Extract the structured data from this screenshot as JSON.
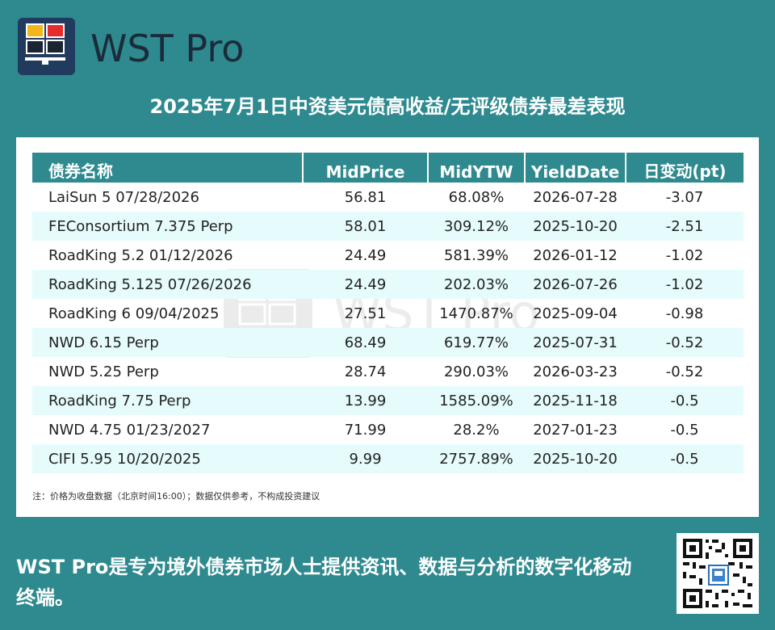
{
  "brand": {
    "name": "WST Pro",
    "logo_colors": {
      "background": "#213b5e",
      "cell_top_left": "#f2b61a",
      "cell_top_right": "#e52b2b",
      "cell_bottom": "#1b2433",
      "border": "#ffffff"
    }
  },
  "title": "2025年7月1日中资美元债高收益/无评级债券最差表现",
  "table": {
    "headers": [
      "债券名称",
      "MidPrice",
      "MidYTW",
      "YieldDate",
      "日变动(pt)"
    ],
    "rows": [
      [
        "LaiSun 5 07/28/2026",
        "56.81",
        "68.08%",
        "2026-07-28",
        "-3.07"
      ],
      [
        "FEConsortium 7.375 Perp",
        "58.01",
        "309.12%",
        "2025-10-20",
        "-2.51"
      ],
      [
        "RoadKing 5.2 01/12/2026",
        "24.49",
        "581.39%",
        "2026-01-12",
        "-1.02"
      ],
      [
        "RoadKing 5.125 07/26/2026",
        "24.49",
        "202.03%",
        "2026-07-26",
        "-1.02"
      ],
      [
        "RoadKing 6 09/04/2025",
        "27.51",
        "1470.87%",
        "2025-09-04",
        "-0.98"
      ],
      [
        "NWD 6.15 Perp",
        "68.49",
        "619.77%",
        "2025-07-31",
        "-0.52"
      ],
      [
        "NWD 5.25 Perp",
        "28.74",
        "290.03%",
        "2026-03-23",
        "-0.52"
      ],
      [
        "RoadKing 7.75 Perp",
        "13.99",
        "1585.09%",
        "2025-11-18",
        "-0.5"
      ],
      [
        "NWD 4.75 01/23/2027",
        "71.99",
        "28.2%",
        "2027-01-23",
        "-0.5"
      ],
      [
        "CIFI 5.95 10/20/2025",
        "9.99",
        "2757.89%",
        "2025-10-20",
        "-0.5"
      ]
    ]
  },
  "note": "注：价格为收盘数据（北京时间16:00）；数据仅供参考，不构成投资建议",
  "watermark": "WST Pro",
  "tagline": "WST Pro是专为境外债券市场人士提供资讯、数据与分析的数字化移动终端。",
  "colors": {
    "background": "#2e8a8f",
    "header_bg": "#2e8a8f",
    "stripe": "#e6fbfb",
    "panel": "#ffffff",
    "brand_text": "#1c2b3a"
  },
  "qr_icon": "qr-code-icon"
}
